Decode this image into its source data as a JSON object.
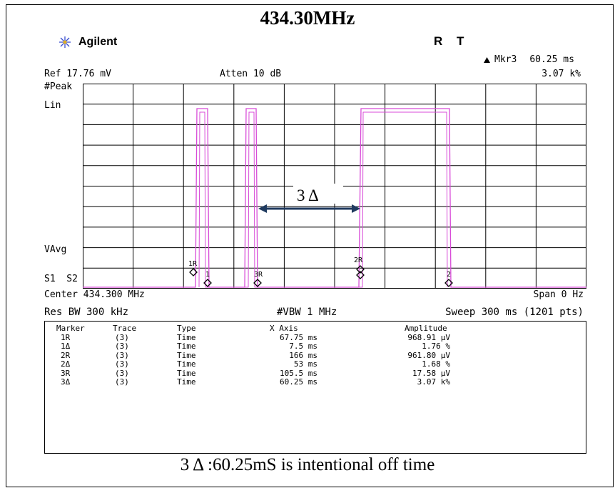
{
  "title": "434.30MHz",
  "brand": "Agilent",
  "status_r": "R",
  "status_t": "T",
  "marker_readout": {
    "label": "Mkr3",
    "time": "60.25 ms",
    "value": "3.07 k%"
  },
  "ref_level": "Ref 17.76 mV",
  "attenuation": "Atten 10 dB",
  "detector": "#Peak",
  "scale": "Lin",
  "vavg": "VAvg",
  "s1s2": "S1  S2",
  "center": "Center 434.300 MHz",
  "span": "Span 0 Hz",
  "res_bw": "Res BW 300 kHz",
  "vbw": "#VBW 1 MHz",
  "sweep": "Sweep 300 ms (1201 pts)",
  "annotation": "3 Δ",
  "marker_labels": {
    "m1r": "1R",
    "m1": "1",
    "m3r": "3R",
    "m2r": "2R",
    "m2": "2"
  },
  "table": {
    "headers": [
      "Marker",
      "Trace",
      "Type",
      "X Axis",
      "Amplitude"
    ],
    "rows": [
      [
        "1R",
        "(3)",
        "Time",
        "67.75 ms",
        "968.91 µV"
      ],
      [
        "1Δ",
        "(3)",
        "Time",
        "7.5 ms",
        "1.76 %"
      ],
      [
        "2R",
        "(3)",
        "Time",
        "166 ms",
        "961.80 µV"
      ],
      [
        "2Δ",
        "(3)",
        "Time",
        "53 ms",
        "1.68 %"
      ],
      [
        "3R",
        "(3)",
        "Time",
        "105.5 ms",
        "17.58 µV"
      ],
      [
        "3Δ",
        "(3)",
        "Time",
        "60.25 ms",
        "3.07 k%"
      ]
    ]
  },
  "caption": "3 Δ :60.25mS is intentional off time",
  "colors": {
    "trace": "#d84bd8",
    "arrow": "#1f3a5f",
    "grid": "#000000"
  }
}
